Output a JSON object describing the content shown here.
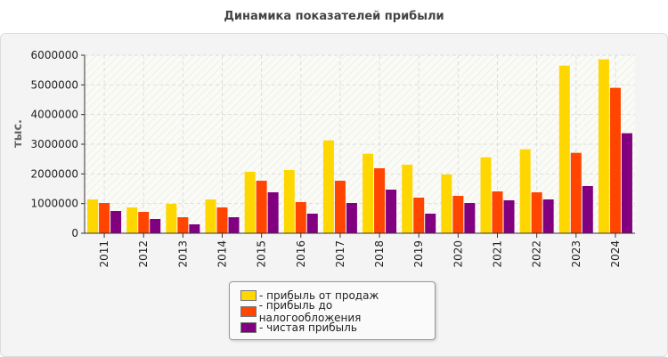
{
  "chart_data": {
    "type": "bar",
    "title": "Динамика показателей прибыли",
    "ylabel": "тыс.",
    "xlabel": "",
    "ylim": [
      0,
      6000000
    ],
    "yticks": [
      "0",
      "1000000",
      "2000000",
      "3000000",
      "4000000",
      "5000000",
      "6000000"
    ],
    "grid": true,
    "legend_position": "bottom",
    "categories": [
      "2011",
      "2012",
      "2013",
      "2014",
      "2015",
      "2016",
      "2017",
      "2018",
      "2019",
      "2020",
      "2021",
      "2022",
      "2023",
      "2024"
    ],
    "series": [
      {
        "name": "- прибыль от продаж",
        "color": "#FFD700",
        "values": [
          1140000,
          870000,
          990000,
          1140000,
          2070000,
          2130000,
          3130000,
          2680000,
          2310000,
          1980000,
          2560000,
          2830000,
          5650000,
          5860000
        ]
      },
      {
        "name": "- прибыль до налогообложения",
        "color": "#FF4500",
        "values": [
          1020000,
          720000,
          540000,
          870000,
          1770000,
          1050000,
          1770000,
          2190000,
          1200000,
          1260000,
          1410000,
          1380000,
          2710000,
          4900000
        ]
      },
      {
        "name": "- чистая прибыль",
        "color": "#800080",
        "values": [
          750000,
          480000,
          300000,
          540000,
          1380000,
          660000,
          1020000,
          1470000,
          660000,
          1020000,
          1110000,
          1140000,
          1590000,
          3370000
        ]
      }
    ]
  }
}
